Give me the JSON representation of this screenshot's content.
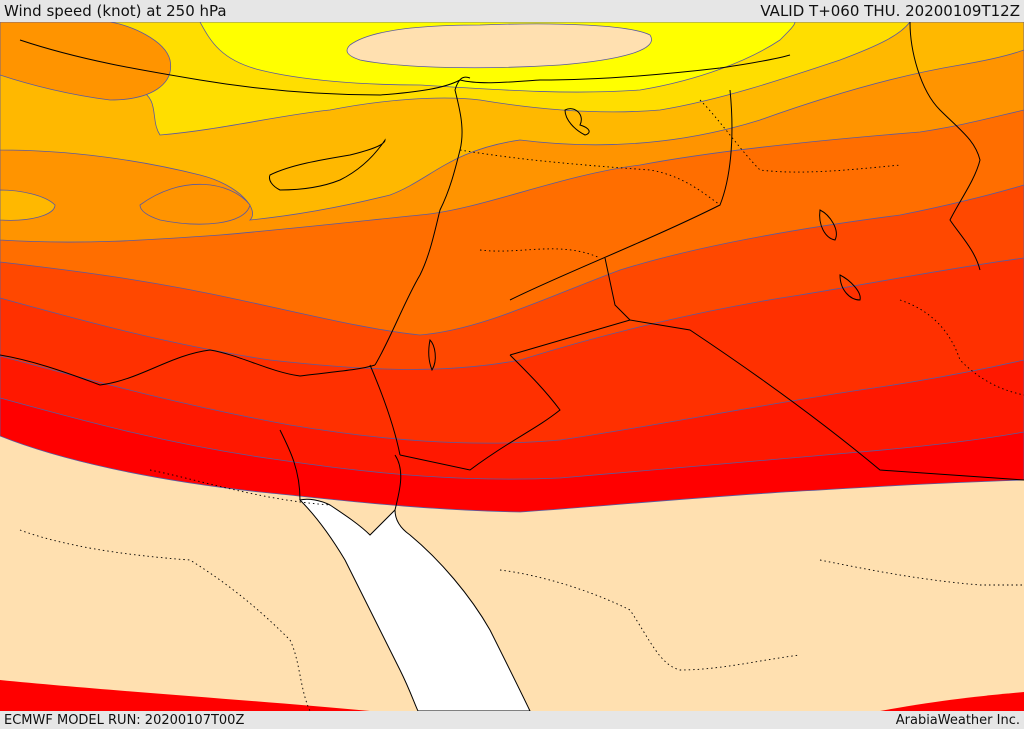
{
  "header": {
    "title": "Wind speed (knot) at 250 hPa",
    "valid": "VALID T+060 THU. 20200109T12Z"
  },
  "footer": {
    "model_run": "ECMWF MODEL RUN: 20200107T00Z",
    "credit": "ArabiaWeather Inc."
  },
  "colors": {
    "band_lightest": "#ffe0b0",
    "band_yellow": "#ffff00",
    "band_gold": "#ffde00",
    "band_amber": "#ffb800",
    "band_orange": "#ff9400",
    "band_dark_orange": "#ff6e00",
    "band_red_orange": "#ff4800",
    "band_red_1": "#ff3000",
    "band_red_2": "#ff1800",
    "band_red_3": "#ff0000",
    "sea": "#ffffff",
    "coast": "#000000",
    "contour": "#5a5aa0"
  }
}
